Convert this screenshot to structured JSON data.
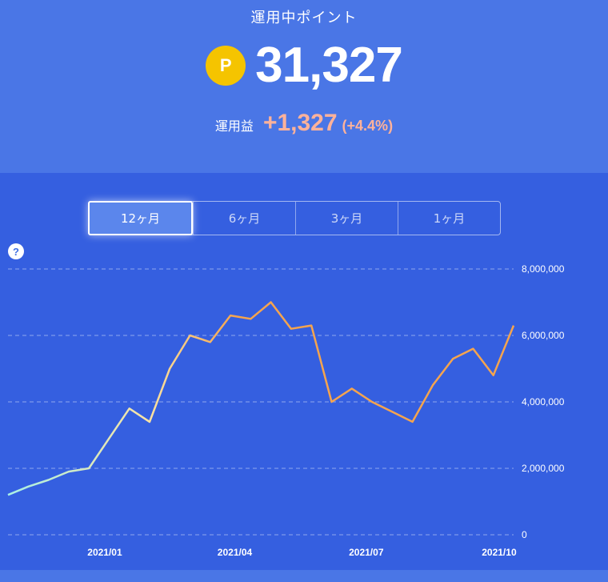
{
  "header": {
    "title": "運用中ポイント",
    "coin_symbol": "P",
    "points": "31,327",
    "profit_label": "運用益",
    "profit_value": "+1,327",
    "profit_percent": "(+4.4%)"
  },
  "tabs": [
    {
      "label": "12ヶ月",
      "active": true
    },
    {
      "label": "6ヶ月",
      "active": false
    },
    {
      "label": "3ヶ月",
      "active": false
    },
    {
      "label": "1ヶ月",
      "active": false
    }
  ],
  "help_label": "?",
  "colors": {
    "line_start": "#a8f0e6",
    "line_mid": "#fbe3a3",
    "line_end": "#f5a44e",
    "profit": "#ffb29a",
    "coin": "#f5c400"
  },
  "chart_data": {
    "type": "line",
    "x": [
      "2020-10-26",
      "2020-11-09",
      "2020-11-23",
      "2020-12-07",
      "2020-12-21",
      "2021-01-04",
      "2021-01-18",
      "2021-02-01",
      "2021-02-15",
      "2021-03-01",
      "2021-03-15",
      "2021-03-29",
      "2021-04-12",
      "2021-04-26",
      "2021-05-10",
      "2021-05-24",
      "2021-06-07",
      "2021-06-21",
      "2021-07-05",
      "2021-07-19",
      "2021-08-02",
      "2021-08-16",
      "2021-08-30",
      "2021-09-13",
      "2021-09-27",
      "2021-10-11"
    ],
    "series": [
      {
        "values": [
          1200000,
          1450000,
          1650000,
          1900000,
          2000000,
          2900000,
          3800000,
          3400000,
          5000000,
          6000000,
          5800000,
          6600000,
          6500000,
          7000000,
          6200000,
          6300000,
          4000000,
          4400000,
          4000000,
          3700000,
          3400000,
          4500000,
          5300000,
          5600000,
          4800000,
          6300000
        ]
      }
    ],
    "yticks": [
      "0",
      "2,000,000",
      "4,000,000",
      "6,000,000",
      "8,000,000"
    ],
    "xticks": [
      "2021/01",
      "2021/04",
      "2021/07",
      "2021/10"
    ],
    "ylim": [
      0,
      8000000
    ],
    "grid": true
  }
}
